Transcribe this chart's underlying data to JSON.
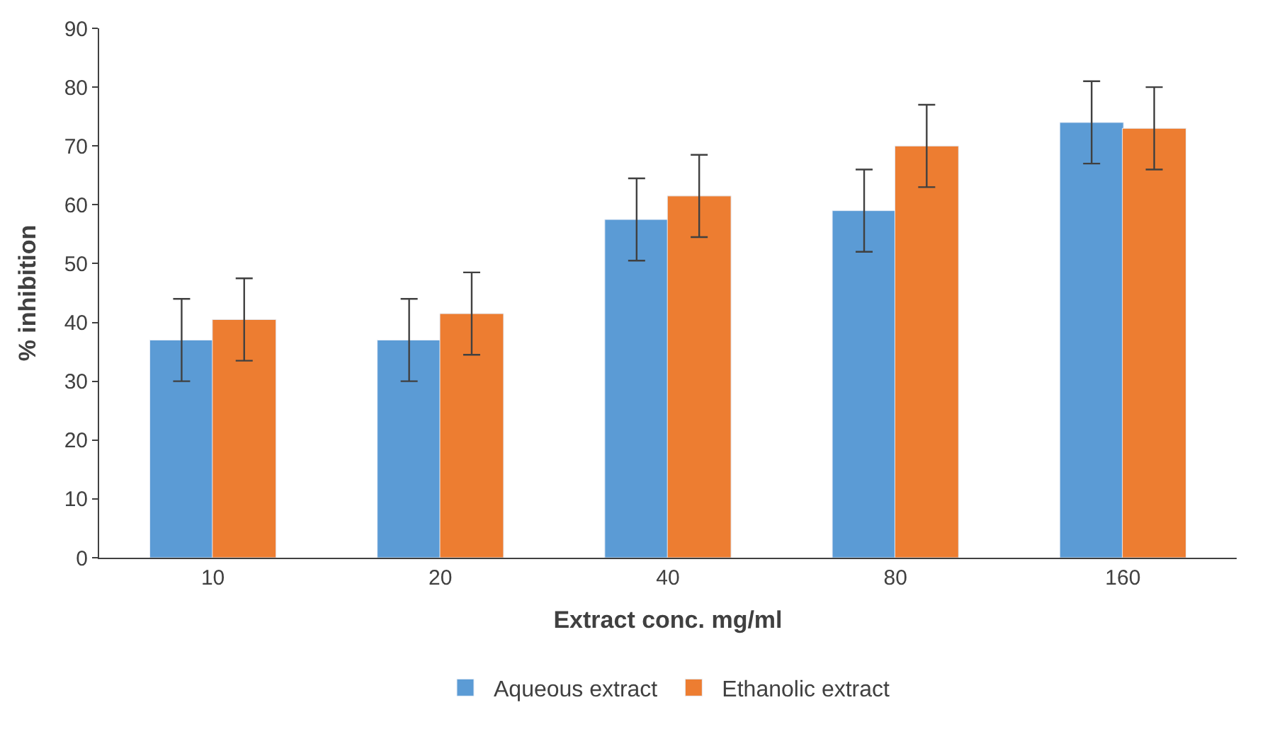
{
  "chart_data": {
    "type": "bar",
    "xlabel": "Extract conc. mg/ml",
    "ylabel": "% inhibition",
    "categories": [
      "10",
      "20",
      "40",
      "80",
      "160"
    ],
    "series": [
      {
        "name": "Aqueous extract",
        "color": "#5b9bd5",
        "values": [
          37,
          37,
          57.5,
          59,
          74
        ],
        "errors": [
          7,
          7,
          7,
          7,
          7
        ]
      },
      {
        "name": "Ethanolic extract",
        "color": "#ed7d31",
        "values": [
          40.5,
          41.5,
          61.5,
          70,
          73
        ],
        "errors": [
          7,
          7,
          7,
          7,
          7
        ]
      }
    ],
    "ylim": [
      0,
      90
    ],
    "yticks": [
      0,
      10,
      20,
      30,
      40,
      50,
      60,
      70,
      80,
      90
    ],
    "legend": "bottom"
  }
}
